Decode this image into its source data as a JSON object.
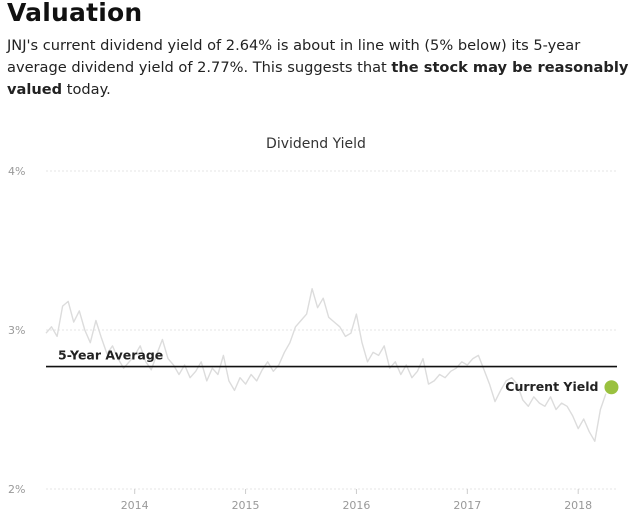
{
  "section": {
    "heading": "Valuation",
    "summary_parts": [
      "JNJ's current dividend yield of 2.64% is about in line with (5% below) its 5-year average dividend yield of 2.77%. This suggests that ",
      "the stock may be reasonably valued",
      " today."
    ]
  },
  "chart_data": {
    "type": "line",
    "title": "Dividend Yield",
    "xlabel": "",
    "ylabel": "",
    "y_unit": "%",
    "ylim": [
      2,
      4
    ],
    "xlim": [
      2013.2,
      2018.35
    ],
    "y_ticks": [
      {
        "value": 2,
        "label": "2%"
      },
      {
        "value": 3,
        "label": "3%"
      },
      {
        "value": 4,
        "label": "4%"
      }
    ],
    "x_ticks": [
      {
        "value": 2014,
        "label": "2014"
      },
      {
        "value": 2015,
        "label": "2015"
      },
      {
        "value": 2016,
        "label": "2016"
      },
      {
        "value": 2017,
        "label": "2017"
      },
      {
        "value": 2018,
        "label": "2018"
      }
    ],
    "grid": true,
    "series": [
      {
        "color": "#dcdcdc",
        "x": [
          2013.2,
          2013.25,
          2013.3,
          2013.35,
          2013.4,
          2013.45,
          2013.5,
          2013.55,
          2013.6,
          2013.65,
          2013.7,
          2013.75,
          2013.8,
          2013.85,
          2013.9,
          2013.95,
          2014.0,
          2014.05,
          2014.1,
          2014.15,
          2014.2,
          2014.25,
          2014.3,
          2014.35,
          2014.4,
          2014.45,
          2014.5,
          2014.55,
          2014.6,
          2014.65,
          2014.7,
          2014.75,
          2014.8,
          2014.85,
          2014.9,
          2014.95,
          2015.0,
          2015.05,
          2015.1,
          2015.15,
          2015.2,
          2015.25,
          2015.3,
          2015.35,
          2015.4,
          2015.45,
          2015.5,
          2015.55,
          2015.6,
          2015.65,
          2015.7,
          2015.75,
          2015.8,
          2015.85,
          2015.9,
          2015.95,
          2016.0,
          2016.05,
          2016.1,
          2016.15,
          2016.2,
          2016.25,
          2016.3,
          2016.35,
          2016.4,
          2016.45,
          2016.5,
          2016.55,
          2016.6,
          2016.65,
          2016.7,
          2016.75,
          2016.8,
          2016.85,
          2016.9,
          2016.95,
          2017.0,
          2017.05,
          2017.1,
          2017.15,
          2017.2,
          2017.25,
          2017.3,
          2017.35,
          2017.4,
          2017.45,
          2017.5,
          2017.55,
          2017.6,
          2017.65,
          2017.7,
          2017.75,
          2017.8,
          2017.85,
          2017.9,
          2017.95,
          2018.0,
          2018.05,
          2018.1,
          2018.15,
          2018.2,
          2018.25
        ],
        "y": [
          2.98,
          3.02,
          2.96,
          3.15,
          3.18,
          3.05,
          3.12,
          3.0,
          2.92,
          3.06,
          2.95,
          2.85,
          2.9,
          2.82,
          2.76,
          2.8,
          2.84,
          2.9,
          2.8,
          2.75,
          2.85,
          2.94,
          2.82,
          2.78,
          2.72,
          2.78,
          2.7,
          2.74,
          2.8,
          2.68,
          2.76,
          2.72,
          2.84,
          2.68,
          2.62,
          2.7,
          2.66,
          2.72,
          2.68,
          2.75,
          2.8,
          2.74,
          2.78,
          2.86,
          2.92,
          3.02,
          3.06,
          3.1,
          3.26,
          3.14,
          3.2,
          3.08,
          3.05,
          3.02,
          2.96,
          2.98,
          3.1,
          2.92,
          2.8,
          2.86,
          2.84,
          2.9,
          2.76,
          2.8,
          2.72,
          2.78,
          2.7,
          2.74,
          2.82,
          2.66,
          2.68,
          2.72,
          2.7,
          2.74,
          2.76,
          2.8,
          2.78,
          2.82,
          2.84,
          2.75,
          2.66,
          2.55,
          2.62,
          2.68,
          2.7,
          2.66,
          2.56,
          2.52,
          2.58,
          2.54,
          2.52,
          2.58,
          2.5,
          2.54,
          2.52,
          2.46,
          2.38,
          2.44,
          2.36,
          2.3,
          2.5,
          2.6
        ]
      }
    ],
    "reference_lines": [
      {
        "label": "5-Year Average",
        "value": 2.77,
        "color": "#111111"
      }
    ],
    "current_point": {
      "label": "Current Yield",
      "x": 2018.3,
      "value": 2.64,
      "color": "#9ac13f"
    }
  }
}
